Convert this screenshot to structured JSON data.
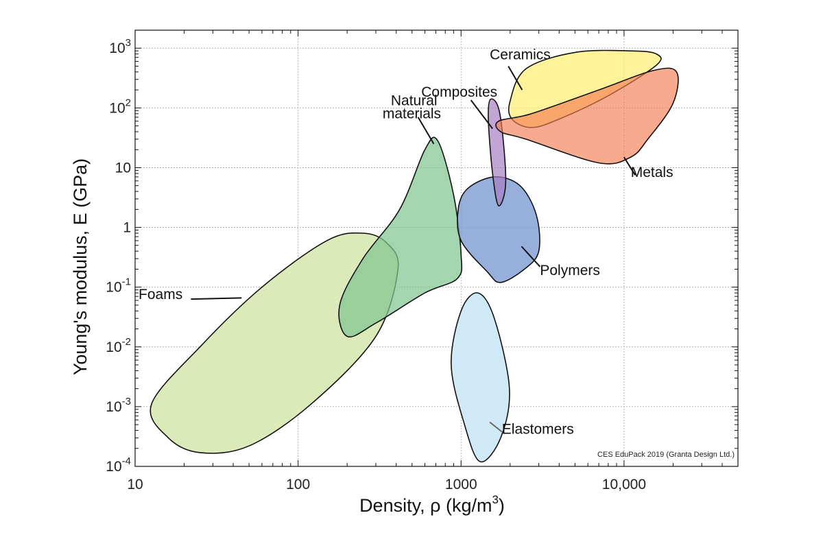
{
  "chart_data": {
    "type": "scatter",
    "xlabel": "Density, ρ (kg/m3)",
    "xlabel_parts": {
      "main": "Density, ρ  (kg/m",
      "sup": "3",
      "end": ")"
    },
    "ylabel": "Young's modulus, E (GPa)",
    "xscale": "log",
    "yscale": "log",
    "xlim": [
      10,
      50000
    ],
    "ylim": [
      0.0001,
      2000
    ],
    "grid": true,
    "x_ticks": [
      {
        "value": 10,
        "label": "10"
      },
      {
        "value": 100,
        "label": "100"
      },
      {
        "value": 1000,
        "label": "1000"
      },
      {
        "value": 10000,
        "label": "10,000"
      }
    ],
    "y_ticks": [
      {
        "value": 1000,
        "base": "10",
        "sup": "3"
      },
      {
        "value": 100,
        "base": "10",
        "sup": "2"
      },
      {
        "value": 10,
        "base": "10",
        "sup": ""
      },
      {
        "value": 1,
        "base": "1",
        "sup": ""
      },
      {
        "value": 0.1,
        "base": "10",
        "sup": "-1"
      },
      {
        "value": 0.01,
        "base": "10",
        "sup": "-2"
      },
      {
        "value": 0.001,
        "base": "10",
        "sup": "-3"
      },
      {
        "value": 0.0001,
        "base": "10",
        "sup": "-4"
      }
    ],
    "series": [
      {
        "name": "Foams",
        "color": "#dce9b8",
        "opacity": 1,
        "label_lines": [
          "Foams"
        ],
        "label_at": [
          10.5,
          0.063
        ],
        "leader": [
          [
            22,
            0.063
          ],
          [
            45,
            0.066
          ]
        ],
        "outline": [
          [
            12.6,
            0.0011
          ],
          [
            16,
            0.0003
          ],
          [
            25,
            0.00017
          ],
          [
            50,
            0.00022
          ],
          [
            120,
            0.0011
          ],
          [
            300,
            0.015
          ],
          [
            410,
            0.2
          ],
          [
            350,
            0.55
          ],
          [
            250,
            0.8
          ],
          [
            150,
            0.6
          ],
          [
            60,
            0.1
          ],
          [
            25,
            0.01
          ]
        ]
      },
      {
        "name": "Natural materials",
        "color": "#7fc58f",
        "opacity": 0.72,
        "label_lines": [
          "Natural",
          "materials"
        ],
        "label_at": [
          330,
          110
        ],
        "leader": [
          [
            545,
            70
          ],
          [
            680,
            25
          ]
        ],
        "outline": [
          [
            180,
            0.05
          ],
          [
            200,
            0.015
          ],
          [
            300,
            0.025
          ],
          [
            600,
            0.08
          ],
          [
            950,
            0.14
          ],
          [
            1000,
            0.35
          ],
          [
            900,
            3.5
          ],
          [
            720,
            28
          ],
          [
            600,
            20
          ],
          [
            420,
            2
          ],
          [
            250,
            0.3
          ]
        ]
      },
      {
        "name": "Elastomers",
        "color": "#cfe9f7",
        "opacity": 1,
        "label_lines": [
          "Elastomers"
        ],
        "label_at": [
          1780,
          0.00035
        ],
        "leader": [
          [
            1500,
            0.00055
          ],
          [
            1780,
            0.00038
          ]
        ],
        "outline": [
          [
            1270,
            0.08
          ],
          [
            1600,
            0.03
          ],
          [
            1980,
            0.002
          ],
          [
            1750,
            0.0003
          ],
          [
            1310,
            0.00012
          ],
          [
            1050,
            0.0005
          ],
          [
            870,
            0.005
          ],
          [
            1000,
            0.04
          ]
        ]
      },
      {
        "name": "Polymers",
        "color": "#7f9fd3",
        "opacity": 0.82,
        "label_lines": [
          "Polymers"
        ],
        "label_at": [
          3050,
          0.16
        ],
        "leader": [
          [
            2350,
            0.48
          ],
          [
            3050,
            0.22
          ]
        ],
        "outline": [
          [
            1600,
            7
          ],
          [
            2300,
            5
          ],
          [
            2900,
            1.6
          ],
          [
            3000,
            0.4
          ],
          [
            2450,
            0.2
          ],
          [
            1750,
            0.12
          ],
          [
            1450,
            0.18
          ],
          [
            1000,
            0.6
          ],
          [
            960,
            2
          ],
          [
            1100,
            4.5
          ]
        ]
      },
      {
        "name": "Composites",
        "color": "#a77fc3",
        "opacity": 0.7,
        "label_lines": [
          "Composites"
        ],
        "label_at": [
          570,
          155
        ],
        "leader": [
          [
            1150,
            135
          ],
          [
            1560,
            45
          ]
        ],
        "outline": [
          [
            1520,
            140
          ],
          [
            1730,
            80
          ],
          [
            1880,
            6
          ],
          [
            1700,
            2.3
          ],
          [
            1560,
            8
          ],
          [
            1470,
            65
          ]
        ]
      },
      {
        "name": "Ceramics",
        "color": "#fef07f",
        "opacity": 0.78,
        "label_lines": [
          "Ceramics"
        ],
        "label_at": [
          1500,
          650
        ],
        "leader": [
          [
            1950,
            500
          ],
          [
            2370,
            200
          ]
        ],
        "outline": [
          [
            2500,
            450
          ],
          [
            5000,
            850
          ],
          [
            11000,
            900
          ],
          [
            15800,
            800
          ],
          [
            15800,
            520
          ],
          [
            8000,
            160
          ],
          [
            4000,
            65
          ],
          [
            2700,
            47
          ],
          [
            2050,
            65
          ],
          [
            2000,
            130
          ]
        ]
      },
      {
        "name": "Metals",
        "color": "#f47d51",
        "opacity": 0.65,
        "label_lines": [
          "Metals"
        ],
        "label_at": [
          11000,
          7
        ],
        "leader": [
          [
            10000,
            15
          ],
          [
            11700,
            7.5
          ]
        ],
        "outline": [
          [
            1700,
            60
          ],
          [
            2700,
            80
          ],
          [
            7000,
            200
          ],
          [
            15000,
            420
          ],
          [
            21000,
            400
          ],
          [
            20000,
            120
          ],
          [
            14000,
            30
          ],
          [
            11000,
            15
          ],
          [
            7000,
            12
          ],
          [
            2500,
            30
          ],
          [
            1750,
            40
          ]
        ]
      }
    ],
    "credit": "CES EduPack 2019 (Granta Design Ltd.)"
  }
}
